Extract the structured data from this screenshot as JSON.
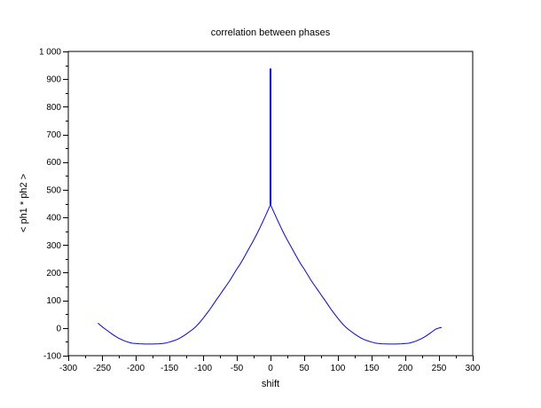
{
  "figure": {
    "background": "#ffffff"
  },
  "chart_data": {
    "type": "line",
    "title": "correlation between phases",
    "xlabel": "shift",
    "ylabel": "< ph1 * ph2 >",
    "xlim": [
      -300,
      300
    ],
    "ylim": [
      -100,
      1000
    ],
    "grid": false,
    "legend": "none",
    "axis_color": "#000000",
    "x_tick_values": [
      -300,
      -250,
      -200,
      -150,
      -100,
      -50,
      0,
      50,
      100,
      150,
      200,
      250,
      300
    ],
    "x_tick_labels": [
      "-300",
      "-250",
      "-200",
      "-150",
      "-100",
      "-50",
      "0",
      "50",
      "100",
      "150",
      "200",
      "250",
      "300"
    ],
    "x_minor_tick_step": 25,
    "y_tick_values": [
      1000,
      900,
      800,
      700,
      600,
      500,
      400,
      300,
      200,
      100,
      0,
      -100
    ],
    "y_tick_labels": [
      "1 000",
      "900",
      "800",
      "700",
      "600",
      "500",
      "400",
      "300",
      "200",
      "100",
      "0",
      "-100"
    ],
    "y_minor_tick_step": 50,
    "series": [
      {
        "name": "correlation-curve",
        "color": "#0000ff",
        "width": 1,
        "points": [
          [
            -256,
            18
          ],
          [
            -250,
            5
          ],
          [
            -245,
            -4
          ],
          [
            -240,
            -13
          ],
          [
            -235,
            -22
          ],
          [
            -230,
            -30
          ],
          [
            -225,
            -37
          ],
          [
            -220,
            -43
          ],
          [
            -215,
            -48
          ],
          [
            -210,
            -52
          ],
          [
            -205,
            -55
          ],
          [
            -200,
            -56
          ],
          [
            -195,
            -57
          ],
          [
            -185,
            -58
          ],
          [
            -175,
            -58
          ],
          [
            -165,
            -57
          ],
          [
            -160,
            -56
          ],
          [
            -155,
            -54
          ],
          [
            -150,
            -51
          ],
          [
            -145,
            -47
          ],
          [
            -140,
            -43
          ],
          [
            -135,
            -37
          ],
          [
            -130,
            -30
          ],
          [
            -125,
            -22
          ],
          [
            -120,
            -13
          ],
          [
            -115,
            -4
          ],
          [
            -110,
            7
          ],
          [
            -105,
            20
          ],
          [
            -100,
            35
          ],
          [
            -95,
            51
          ],
          [
            -90,
            67
          ],
          [
            -85,
            85
          ],
          [
            -80,
            103
          ],
          [
            -75,
            120
          ],
          [
            -70,
            138
          ],
          [
            -65,
            155
          ],
          [
            -60,
            173
          ],
          [
            -55,
            193
          ],
          [
            -50,
            213
          ],
          [
            -45,
            231
          ],
          [
            -40,
            252
          ],
          [
            -35,
            274
          ],
          [
            -30,
            296
          ],
          [
            -25,
            318
          ],
          [
            -20,
            341
          ],
          [
            -15,
            366
          ],
          [
            -10,
            392
          ],
          [
            -5,
            419
          ],
          [
            0,
            446
          ],
          [
            5,
            419
          ],
          [
            10,
            392
          ],
          [
            15,
            366
          ],
          [
            20,
            341
          ],
          [
            25,
            318
          ],
          [
            30,
            296
          ],
          [
            35,
            274
          ],
          [
            40,
            252
          ],
          [
            45,
            231
          ],
          [
            50,
            213
          ],
          [
            55,
            193
          ],
          [
            60,
            173
          ],
          [
            65,
            155
          ],
          [
            70,
            138
          ],
          [
            75,
            120
          ],
          [
            80,
            103
          ],
          [
            85,
            85
          ],
          [
            90,
            67
          ],
          [
            95,
            51
          ],
          [
            100,
            35
          ],
          [
            105,
            20
          ],
          [
            110,
            7
          ],
          [
            115,
            -4
          ],
          [
            120,
            -13
          ],
          [
            125,
            -22
          ],
          [
            130,
            -30
          ],
          [
            135,
            -37
          ],
          [
            140,
            -43
          ],
          [
            145,
            -47
          ],
          [
            150,
            -51
          ],
          [
            155,
            -54
          ],
          [
            160,
            -56
          ],
          [
            165,
            -57
          ],
          [
            175,
            -58
          ],
          [
            185,
            -58
          ],
          [
            195,
            -57
          ],
          [
            200,
            -56
          ],
          [
            205,
            -55
          ],
          [
            210,
            -52
          ],
          [
            215,
            -48
          ],
          [
            220,
            -43
          ],
          [
            225,
            -37
          ],
          [
            230,
            -30
          ],
          [
            235,
            -22
          ],
          [
            240,
            -13
          ],
          [
            245,
            -4
          ],
          [
            250,
            0
          ],
          [
            254,
            2
          ]
        ]
      },
      {
        "name": "zero-lag-spike",
        "color": "#0000ff",
        "width": 2,
        "points": [
          [
            0,
            446
          ],
          [
            0,
            938
          ]
        ]
      }
    ]
  }
}
